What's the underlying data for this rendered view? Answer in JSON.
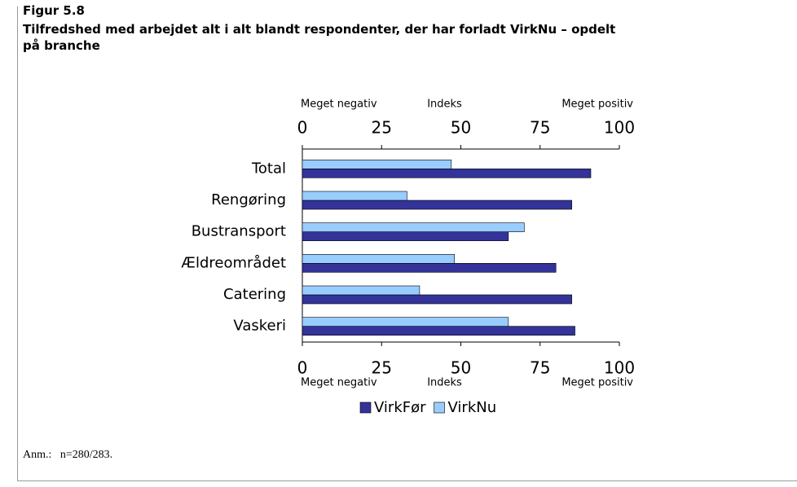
{
  "chart_data": {
    "type": "bar",
    "orientation": "horizontal",
    "figure_label": "Figur 5.8",
    "title": "Tilfredshed med arbejdet alt i alt blandt respondenter, der har forladt VirkNu – opdelt på branche",
    "axis_labels": {
      "left": "Meget negativ",
      "center": "Indeks",
      "right": "Meget positiv"
    },
    "categories": [
      "Total",
      "Rengøring",
      "Bustransport",
      "Ældreområdet",
      "Catering",
      "Vaskeri"
    ],
    "series": [
      {
        "name": "VirkFør",
        "color": "#333399",
        "values": [
          91,
          85,
          65,
          80,
          85,
          86
        ]
      },
      {
        "name": "VirkNu",
        "color": "#99ccff",
        "values": [
          47,
          33,
          70,
          48,
          37,
          65
        ]
      }
    ],
    "xlim": [
      0,
      100
    ],
    "xticks": [
      0,
      25,
      50,
      75,
      100
    ],
    "legend": "bottom",
    "note": "Anm.:   n=280/283."
  }
}
